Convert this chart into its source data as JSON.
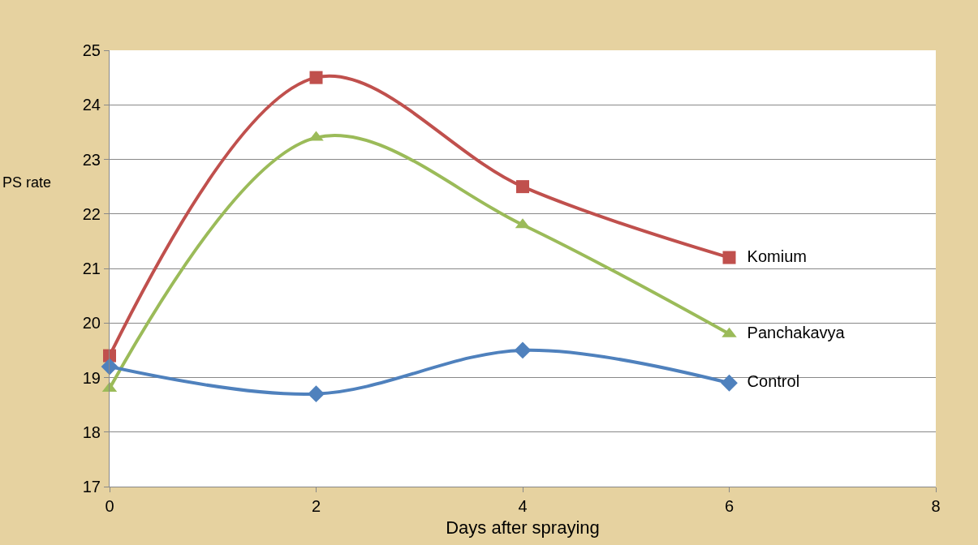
{
  "chart_data": {
    "type": "line",
    "xlabel": "Days after spraying",
    "ylabel": "PS rate",
    "x": [
      0,
      2,
      4,
      6
    ],
    "series": [
      {
        "name": "Komium",
        "color": "#c0504d",
        "marker": "square",
        "values": [
          19.4,
          24.5,
          22.5,
          21.2
        ]
      },
      {
        "name": "Panchakavya",
        "color": "#9bbb59",
        "marker": "triangle",
        "values": [
          18.8,
          23.4,
          21.8,
          19.8
        ]
      },
      {
        "name": "Control",
        "color": "#4f81bd",
        "marker": "diamond",
        "values": [
          19.2,
          18.7,
          19.5,
          18.9
        ]
      }
    ],
    "xlim": [
      0,
      8
    ],
    "xticks": [
      0,
      2,
      4,
      6,
      8
    ],
    "ylim": [
      17,
      25
    ],
    "yticks": [
      17,
      18,
      19,
      20,
      21,
      22,
      23,
      24,
      25
    ],
    "grid": "y",
    "legend": false,
    "line_style": "solid"
  }
}
